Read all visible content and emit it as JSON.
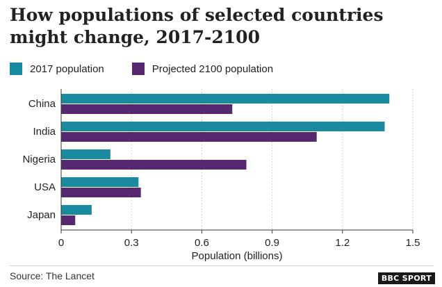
{
  "title": "How populations of selected countries might change, 2017-2100",
  "colors": {
    "series_2017": "#1a8aa0",
    "series_2100": "#55286f"
  },
  "chart_data": {
    "type": "bar",
    "orientation": "horizontal",
    "categories": [
      "China",
      "India",
      "Nigeria",
      "USA",
      "Japan"
    ],
    "series": [
      {
        "name": "2017 population",
        "values": [
          1.4,
          1.38,
          0.21,
          0.33,
          0.13
        ]
      },
      {
        "name": "Projected 2100 population",
        "values": [
          0.73,
          1.09,
          0.79,
          0.34,
          0.06
        ]
      }
    ],
    "xlabel": "Population (billions)",
    "xlim": [
      0,
      1.5
    ],
    "xticks": [
      "0",
      "0.3",
      "0.6",
      "0.9",
      "1.2",
      "1.5"
    ],
    "tick_values": [
      0,
      0.3,
      0.6,
      0.9,
      1.2,
      1.5
    ],
    "grid": "vertical dashed",
    "legend_position": "top-left"
  },
  "footer": {
    "source": "Source: The Lancet",
    "logo": "BBC SPORT"
  }
}
